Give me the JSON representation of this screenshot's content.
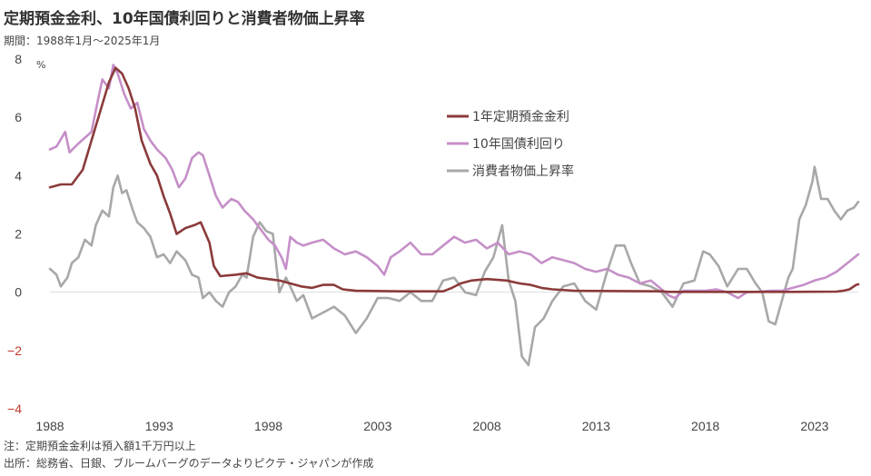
{
  "header": {
    "title": "定期預金金利、10年国債利回りと消費者物価上昇率",
    "subtitle": "期間：1988年1月～2025年1月"
  },
  "footer": {
    "note": "注：定期預金金利は預入額1千万円以上",
    "source": "出所：総務省、日銀、ブルームバーグのデータよりピクテ・ジャパンが作成"
  },
  "colors": {
    "deposit": "#8b3a3a",
    "jgb10": "#c58fc8",
    "cpi": "#a8a8a8",
    "zero_line": "#dddddd",
    "negative_tick": "#c0392b"
  },
  "chart_data": {
    "type": "line",
    "unit": "%",
    "xlim": [
      1988,
      2025
    ],
    "ylim": [
      -4,
      8
    ],
    "x_ticks": [
      "1988",
      "1993",
      "1998",
      "2003",
      "2008",
      "2013",
      "2018",
      "2023"
    ],
    "y_ticks": [
      "8",
      "6",
      "4",
      "2",
      "0",
      "-2",
      "-4"
    ],
    "legend_position": "upper-middle",
    "grid": false,
    "series": [
      {
        "name": "1年定期預金金利",
        "color_key": "deposit",
        "points": [
          [
            1988.0,
            3.6
          ],
          [
            1988.5,
            3.7
          ],
          [
            1989.0,
            3.7
          ],
          [
            1989.5,
            4.2
          ],
          [
            1989.9,
            5.2
          ],
          [
            1990.3,
            6.2
          ],
          [
            1990.7,
            7.2
          ],
          [
            1991.0,
            7.7
          ],
          [
            1991.3,
            7.5
          ],
          [
            1991.6,
            7.0
          ],
          [
            1991.9,
            6.3
          ],
          [
            1992.2,
            5.2
          ],
          [
            1992.6,
            4.4
          ],
          [
            1992.9,
            4.0
          ],
          [
            1993.2,
            3.3
          ],
          [
            1993.5,
            2.7
          ],
          [
            1993.8,
            2.0
          ],
          [
            1994.2,
            2.2
          ],
          [
            1994.6,
            2.3
          ],
          [
            1994.9,
            2.4
          ],
          [
            1995.3,
            1.7
          ],
          [
            1995.5,
            0.9
          ],
          [
            1995.8,
            0.55
          ],
          [
            1996.5,
            0.6
          ],
          [
            1997.0,
            0.65
          ],
          [
            1997.5,
            0.5
          ],
          [
            1998.0,
            0.45
          ],
          [
            1998.5,
            0.4
          ],
          [
            1999.0,
            0.3
          ],
          [
            1999.5,
            0.2
          ],
          [
            2000.0,
            0.15
          ],
          [
            2000.5,
            0.25
          ],
          [
            2001.0,
            0.25
          ],
          [
            2001.4,
            0.1
          ],
          [
            2002.0,
            0.05
          ],
          [
            2004.0,
            0.03
          ],
          [
            2006.0,
            0.03
          ],
          [
            2006.4,
            0.15
          ],
          [
            2006.8,
            0.3
          ],
          [
            2007.3,
            0.4
          ],
          [
            2008.0,
            0.45
          ],
          [
            2008.9,
            0.4
          ],
          [
            2009.5,
            0.3
          ],
          [
            2010.0,
            0.25
          ],
          [
            2010.5,
            0.15
          ],
          [
            2011.0,
            0.1
          ],
          [
            2012.0,
            0.05
          ],
          [
            2014.0,
            0.04
          ],
          [
            2016.0,
            0.03
          ],
          [
            2016.3,
            0.01
          ],
          [
            2018.0,
            0.01
          ],
          [
            2020.0,
            0.01
          ],
          [
            2022.0,
            0.01
          ],
          [
            2024.0,
            0.02
          ],
          [
            2024.3,
            0.05
          ],
          [
            2024.6,
            0.1
          ],
          [
            2024.9,
            0.25
          ],
          [
            2025.0,
            0.27
          ]
        ]
      },
      {
        "name": "10年国債利回り",
        "color_key": "jgb10",
        "points": [
          [
            1988.0,
            4.9
          ],
          [
            1988.3,
            5.0
          ],
          [
            1988.7,
            5.5
          ],
          [
            1988.9,
            4.8
          ],
          [
            1989.3,
            5.1
          ],
          [
            1989.6,
            5.3
          ],
          [
            1989.9,
            5.5
          ],
          [
            1990.2,
            6.6
          ],
          [
            1990.4,
            7.3
          ],
          [
            1990.7,
            7.0
          ],
          [
            1990.9,
            7.8
          ],
          [
            1991.1,
            7.5
          ],
          [
            1991.4,
            6.8
          ],
          [
            1991.7,
            6.3
          ],
          [
            1992.0,
            6.5
          ],
          [
            1992.3,
            5.6
          ],
          [
            1992.6,
            5.2
          ],
          [
            1992.9,
            4.9
          ],
          [
            1993.3,
            4.6
          ],
          [
            1993.6,
            4.2
          ],
          [
            1993.9,
            3.6
          ],
          [
            1994.2,
            3.9
          ],
          [
            1994.5,
            4.6
          ],
          [
            1994.8,
            4.8
          ],
          [
            1995.0,
            4.7
          ],
          [
            1995.3,
            4.0
          ],
          [
            1995.6,
            3.3
          ],
          [
            1995.9,
            2.9
          ],
          [
            1996.3,
            3.2
          ],
          [
            1996.6,
            3.1
          ],
          [
            1996.9,
            2.8
          ],
          [
            1997.3,
            2.5
          ],
          [
            1997.7,
            2.1
          ],
          [
            1998.0,
            1.8
          ],
          [
            1998.3,
            1.6
          ],
          [
            1998.6,
            1.2
          ],
          [
            1998.8,
            0.8
          ],
          [
            1999.0,
            1.9
          ],
          [
            1999.3,
            1.7
          ],
          [
            1999.6,
            1.6
          ],
          [
            2000.0,
            1.7
          ],
          [
            2000.5,
            1.8
          ],
          [
            2001.0,
            1.5
          ],
          [
            2001.5,
            1.3
          ],
          [
            2002.0,
            1.4
          ],
          [
            2002.5,
            1.2
          ],
          [
            2003.0,
            0.9
          ],
          [
            2003.3,
            0.6
          ],
          [
            2003.6,
            1.2
          ],
          [
            2004.0,
            1.4
          ],
          [
            2004.5,
            1.7
          ],
          [
            2005.0,
            1.3
          ],
          [
            2005.5,
            1.3
          ],
          [
            2006.0,
            1.6
          ],
          [
            2006.5,
            1.9
          ],
          [
            2007.0,
            1.7
          ],
          [
            2007.5,
            1.8
          ],
          [
            2008.0,
            1.5
          ],
          [
            2008.5,
            1.7
          ],
          [
            2009.0,
            1.3
          ],
          [
            2009.5,
            1.4
          ],
          [
            2010.0,
            1.3
          ],
          [
            2010.5,
            1.0
          ],
          [
            2011.0,
            1.2
          ],
          [
            2011.5,
            1.1
          ],
          [
            2012.0,
            1.0
          ],
          [
            2012.5,
            0.8
          ],
          [
            2013.0,
            0.7
          ],
          [
            2013.5,
            0.8
          ],
          [
            2014.0,
            0.6
          ],
          [
            2014.5,
            0.5
          ],
          [
            2015.0,
            0.3
          ],
          [
            2015.5,
            0.4
          ],
          [
            2016.0,
            0.1
          ],
          [
            2016.3,
            -0.1
          ],
          [
            2016.6,
            -0.2
          ],
          [
            2017.0,
            0.05
          ],
          [
            2017.5,
            0.05
          ],
          [
            2018.0,
            0.05
          ],
          [
            2018.5,
            0.1
          ],
          [
            2019.0,
            0.0
          ],
          [
            2019.5,
            -0.2
          ],
          [
            2019.9,
            0.0
          ],
          [
            2020.5,
            0.02
          ],
          [
            2021.0,
            0.05
          ],
          [
            2021.5,
            0.05
          ],
          [
            2022.0,
            0.15
          ],
          [
            2022.5,
            0.25
          ],
          [
            2023.0,
            0.4
          ],
          [
            2023.5,
            0.5
          ],
          [
            2024.0,
            0.7
          ],
          [
            2024.5,
            1.0
          ],
          [
            2025.0,
            1.3
          ]
        ]
      },
      {
        "name": "消費者物価上昇率",
        "color_key": "cpi",
        "points": [
          [
            1988.0,
            0.8
          ],
          [
            1988.3,
            0.6
          ],
          [
            1988.5,
            0.2
          ],
          [
            1988.8,
            0.5
          ],
          [
            1989.0,
            1.0
          ],
          [
            1989.3,
            1.2
          ],
          [
            1989.6,
            1.8
          ],
          [
            1989.9,
            1.6
          ],
          [
            1990.1,
            2.3
          ],
          [
            1990.4,
            2.8
          ],
          [
            1990.7,
            2.6
          ],
          [
            1990.9,
            3.6
          ],
          [
            1991.1,
            4.0
          ],
          [
            1991.3,
            3.4
          ],
          [
            1991.5,
            3.5
          ],
          [
            1991.8,
            2.8
          ],
          [
            1992.0,
            2.4
          ],
          [
            1992.3,
            2.2
          ],
          [
            1992.6,
            1.9
          ],
          [
            1992.9,
            1.2
          ],
          [
            1993.2,
            1.3
          ],
          [
            1993.5,
            1.0
          ],
          [
            1993.8,
            1.4
          ],
          [
            1994.2,
            1.1
          ],
          [
            1994.5,
            0.6
          ],
          [
            1994.8,
            0.5
          ],
          [
            1995.0,
            -0.2
          ],
          [
            1995.3,
            0.0
          ],
          [
            1995.6,
            -0.3
          ],
          [
            1995.9,
            -0.5
          ],
          [
            1996.2,
            0.0
          ],
          [
            1996.5,
            0.2
          ],
          [
            1996.8,
            0.6
          ],
          [
            1997.0,
            0.5
          ],
          [
            1997.3,
            1.9
          ],
          [
            1997.6,
            2.4
          ],
          [
            1997.9,
            2.1
          ],
          [
            1998.2,
            2.0
          ],
          [
            1998.5,
            0.0
          ],
          [
            1998.8,
            0.5
          ],
          [
            1999.0,
            0.2
          ],
          [
            1999.3,
            -0.3
          ],
          [
            1999.6,
            -0.1
          ],
          [
            2000.0,
            -0.9
          ],
          [
            2000.5,
            -0.7
          ],
          [
            2001.0,
            -0.5
          ],
          [
            2001.5,
            -0.8
          ],
          [
            2002.0,
            -1.4
          ],
          [
            2002.5,
            -0.9
          ],
          [
            2003.0,
            -0.2
          ],
          [
            2003.5,
            -0.2
          ],
          [
            2004.0,
            -0.3
          ],
          [
            2004.5,
            0.0
          ],
          [
            2005.0,
            -0.3
          ],
          [
            2005.5,
            -0.3
          ],
          [
            2006.0,
            0.4
          ],
          [
            2006.5,
            0.5
          ],
          [
            2007.0,
            0.0
          ],
          [
            2007.5,
            -0.1
          ],
          [
            2007.9,
            0.7
          ],
          [
            2008.3,
            1.2
          ],
          [
            2008.7,
            2.3
          ],
          [
            2009.0,
            0.4
          ],
          [
            2009.3,
            -0.3
          ],
          [
            2009.6,
            -2.2
          ],
          [
            2009.9,
            -2.5
          ],
          [
            2010.2,
            -1.2
          ],
          [
            2010.6,
            -0.9
          ],
          [
            2011.0,
            -0.3
          ],
          [
            2011.5,
            0.2
          ],
          [
            2012.0,
            0.3
          ],
          [
            2012.5,
            -0.3
          ],
          [
            2013.0,
            -0.6
          ],
          [
            2013.5,
            0.7
          ],
          [
            2013.9,
            1.6
          ],
          [
            2014.3,
            1.6
          ],
          [
            2014.6,
            1.0
          ],
          [
            2015.0,
            0.3
          ],
          [
            2015.5,
            0.2
          ],
          [
            2016.0,
            0.0
          ],
          [
            2016.5,
            -0.5
          ],
          [
            2017.0,
            0.3
          ],
          [
            2017.5,
            0.4
          ],
          [
            2017.9,
            1.4
          ],
          [
            2018.2,
            1.3
          ],
          [
            2018.6,
            0.9
          ],
          [
            2019.0,
            0.2
          ],
          [
            2019.5,
            0.8
          ],
          [
            2019.9,
            0.8
          ],
          [
            2020.3,
            0.3
          ],
          [
            2020.6,
            0.0
          ],
          [
            2020.9,
            -1.0
          ],
          [
            2021.2,
            -1.1
          ],
          [
            2021.5,
            -0.3
          ],
          [
            2021.8,
            0.5
          ],
          [
            2022.0,
            0.8
          ],
          [
            2022.3,
            2.5
          ],
          [
            2022.6,
            3.0
          ],
          [
            2022.9,
            3.8
          ],
          [
            2023.0,
            4.3
          ],
          [
            2023.3,
            3.2
          ],
          [
            2023.6,
            3.2
          ],
          [
            2023.9,
            2.8
          ],
          [
            2024.2,
            2.5
          ],
          [
            2024.5,
            2.8
          ],
          [
            2024.8,
            2.9
          ],
          [
            2025.0,
            3.1
          ]
        ]
      }
    ]
  }
}
